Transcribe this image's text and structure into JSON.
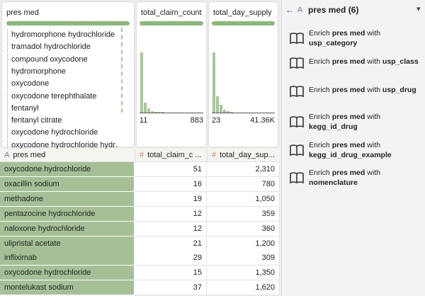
{
  "profile_cards": [
    {
      "title": "pres med",
      "items": [
        "hydromorphone hydrochloride",
        "tramadol hydrochloride",
        "compound oxycodone",
        "hydromorphone",
        "oxycodone",
        "oxycodone terephthalate",
        "fentanyl",
        "fentanyl citrate",
        "oxycodone hydrochloride",
        "oxycodone hydrochloride hydr…"
      ]
    },
    {
      "title": "total_claim_count",
      "histogram": [
        85,
        14,
        6,
        2,
        1,
        1,
        1
      ],
      "min": "11",
      "max": "883"
    },
    {
      "title": "total_day_supply",
      "histogram": [
        80,
        22,
        10,
        4,
        2,
        1
      ],
      "min": "23",
      "max": "41.36K"
    }
  ],
  "table": {
    "columns": [
      {
        "icon": "A",
        "label": "pres med"
      },
      {
        "icon": "#",
        "label": "total_claim_c ..."
      },
      {
        "icon": "#",
        "label": "total_day_sup..."
      }
    ],
    "rows": [
      [
        "oxycodone hydrochloride",
        "51",
        "2,310"
      ],
      [
        "oxacillin sodium",
        "16",
        "780"
      ],
      [
        "methadone",
        "19",
        "1,050"
      ],
      [
        "pentazocine hydrochloride",
        "12",
        "359"
      ],
      [
        "naloxone hydrochloride",
        "12",
        "360"
      ],
      [
        "ulipristal acetate",
        "21",
        "1,200"
      ],
      [
        "infliximab",
        "29",
        "309"
      ],
      [
        "oxycodone hydrochloride",
        "15",
        "1,350"
      ],
      [
        "montelukast sodium",
        "37",
        "1,620"
      ]
    ]
  },
  "panel": {
    "back": "←",
    "icon": "A",
    "title": "pres med (6)",
    "menu": "▾",
    "items": [
      {
        "verb": "Enrich",
        "subject": "pres med",
        "join": "with",
        "target": "usp_category"
      },
      {
        "verb": "Enrich",
        "subject": "pres med",
        "join": "with",
        "target": "usp_class"
      },
      {
        "verb": "Enrich",
        "subject": "pres med",
        "join": "with",
        "target": "usp_drug"
      },
      {
        "verb": "Enrich",
        "subject": "pres med",
        "join": "with",
        "target": "kegg_id_drug"
      },
      {
        "verb": "Enrich",
        "subject": "pres med",
        "join": "with",
        "target": "kegg_id_drug_example"
      },
      {
        "verb": "Enrich",
        "subject": "pres med",
        "join": "with",
        "target": "nomenclature"
      }
    ]
  }
}
